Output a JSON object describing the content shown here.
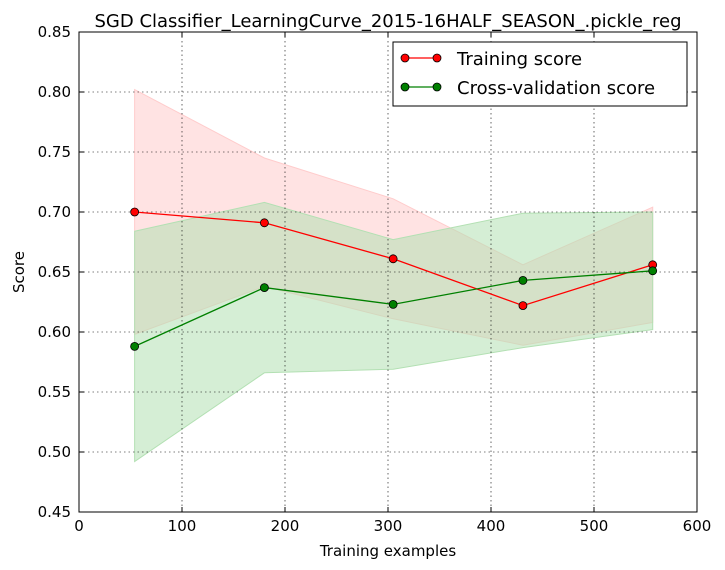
{
  "chart_data": {
    "type": "line",
    "title": "SGD Classifier_LearningCurve_2015-16HALF_SEASON_.pickle_reg",
    "xlabel": "Training examples",
    "ylabel": "Score",
    "xlim": [
      0,
      600
    ],
    "ylim": [
      0.45,
      0.85
    ],
    "grid": true,
    "legend_position": "top-right",
    "x_ticks": [
      "0",
      "100",
      "200",
      "300",
      "400",
      "500",
      "600"
    ],
    "y_ticks": [
      "0.45",
      "0.50",
      "0.55",
      "0.60",
      "0.65",
      "0.70",
      "0.75",
      "0.80",
      "0.85"
    ],
    "x": [
      54,
      180,
      305,
      431,
      557
    ],
    "series": [
      {
        "name": "Training score",
        "color": "#ff0000",
        "fill_color": "#ffcccc",
        "values": [
          0.7,
          0.691,
          0.661,
          0.622,
          0.656
        ],
        "band_upper": [
          0.802,
          0.745,
          0.711,
          0.656,
          0.704
        ],
        "band_lower": [
          0.598,
          0.638,
          0.611,
          0.589,
          0.608
        ]
      },
      {
        "name": "Cross-validation score",
        "color": "#008000",
        "fill_color": "#b3e0b3",
        "values": [
          0.588,
          0.637,
          0.623,
          0.643,
          0.651
        ],
        "band_upper": [
          0.684,
          0.708,
          0.677,
          0.699,
          0.7
        ],
        "band_lower": [
          0.492,
          0.566,
          0.569,
          0.587,
          0.602
        ]
      }
    ]
  }
}
